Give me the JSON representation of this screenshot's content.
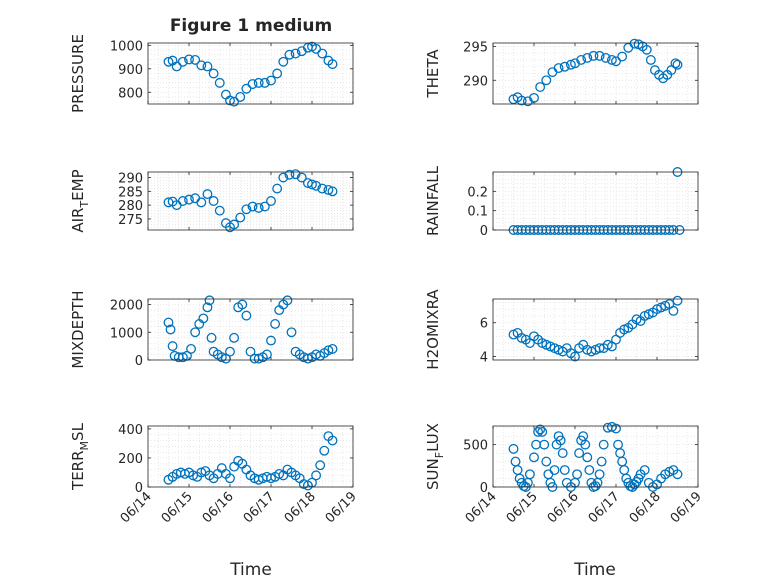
{
  "figure": {
    "title": "Figure 1 medium",
    "xlabel": "Time",
    "marker_color": "#0072BD",
    "x_tick_labels": [
      "06/14",
      "06/15",
      "06/16",
      "06/17",
      "06/18",
      "06/19"
    ]
  },
  "chart_data": [
    {
      "type": "scatter",
      "id": "pressure",
      "ylabel": "PRESSURE",
      "ylabel_sub": "",
      "ylim": [
        750,
        1010
      ],
      "yticks": [
        800,
        900,
        1000
      ],
      "xlim": [
        0,
        5
      ],
      "grid": true,
      "marker": "circle-open",
      "x": [
        0.5,
        0.6,
        0.7,
        0.85,
        1.0,
        1.15,
        1.3,
        1.45,
        1.6,
        1.75,
        1.9,
        2.0,
        2.1,
        2.25,
        2.4,
        2.55,
        2.7,
        2.85,
        3.0,
        3.15,
        3.3,
        3.45,
        3.6,
        3.75,
        3.9,
        4.0,
        4.1,
        4.25,
        4.4,
        4.5
      ],
      "y": [
        930,
        935,
        910,
        930,
        940,
        938,
        915,
        910,
        880,
        840,
        790,
        765,
        760,
        780,
        815,
        835,
        840,
        840,
        850,
        880,
        930,
        960,
        965,
        975,
        990,
        995,
        985,
        965,
        935,
        920
      ]
    },
    {
      "type": "scatter",
      "id": "theta",
      "ylabel": "THETA",
      "ylabel_sub": "",
      "ylim": [
        286.5,
        295.5
      ],
      "yticks": [
        290,
        295
      ],
      "xlim": [
        0,
        5
      ],
      "grid": true,
      "marker": "circle-open",
      "x": [
        0.5,
        0.6,
        0.7,
        0.85,
        1.0,
        1.15,
        1.3,
        1.45,
        1.6,
        1.75,
        1.9,
        2.0,
        2.15,
        2.3,
        2.45,
        2.6,
        2.75,
        2.9,
        3.0,
        3.15,
        3.3,
        3.45,
        3.55,
        3.65,
        3.75,
        3.85,
        3.95,
        4.05,
        4.15,
        4.25,
        4.35,
        4.45,
        4.5
      ],
      "y": [
        287.2,
        287.5,
        287.0,
        286.9,
        287.4,
        289.0,
        290.0,
        291.2,
        291.8,
        292.0,
        292.3,
        292.5,
        293.0,
        293.3,
        293.6,
        293.6,
        293.3,
        293.0,
        292.8,
        293.5,
        294.8,
        295.4,
        295.3,
        295.0,
        294.5,
        293.0,
        291.5,
        290.8,
        290.3,
        290.8,
        291.5,
        292.5,
        292.3
      ]
    },
    {
      "type": "scatter",
      "id": "air_temp",
      "ylabel": "AIR",
      "ylabel_sub": "T",
      "ylabel_tail": "EMP",
      "ylim": [
        271,
        292
      ],
      "yticks": [
        275,
        280,
        285,
        290
      ],
      "xlim": [
        0,
        5
      ],
      "grid": true,
      "marker": "circle-open",
      "x": [
        0.5,
        0.6,
        0.7,
        0.85,
        1.0,
        1.15,
        1.3,
        1.45,
        1.6,
        1.75,
        1.9,
        2.0,
        2.1,
        2.25,
        2.4,
        2.55,
        2.7,
        2.85,
        3.0,
        3.15,
        3.3,
        3.45,
        3.6,
        3.75,
        3.9,
        4.0,
        4.1,
        4.25,
        4.4,
        4.5
      ],
      "y": [
        281.0,
        281.3,
        280.0,
        281.5,
        282.0,
        282.5,
        281.0,
        284.0,
        281.5,
        278.0,
        273.5,
        272.0,
        273.0,
        275.5,
        278.5,
        279.5,
        279.0,
        279.5,
        281.5,
        286.0,
        290.0,
        291.0,
        291.2,
        290.0,
        288.0,
        287.5,
        287.0,
        286.0,
        285.5,
        285.0
      ]
    },
    {
      "type": "scatter",
      "id": "rainfall",
      "ylabel": "RAINFALL",
      "ylabel_sub": "",
      "ylim": [
        0,
        0.3
      ],
      "yticks": [
        0,
        0.1,
        0.2
      ],
      "xlim": [
        0,
        5
      ],
      "grid": true,
      "marker": "circle-open",
      "x": [
        0.5,
        0.6,
        0.7,
        0.8,
        0.9,
        1.0,
        1.1,
        1.2,
        1.3,
        1.4,
        1.5,
        1.6,
        1.7,
        1.8,
        1.9,
        2.0,
        2.1,
        2.2,
        2.3,
        2.4,
        2.5,
        2.6,
        2.7,
        2.8,
        2.9,
        3.0,
        3.1,
        3.2,
        3.3,
        3.4,
        3.5,
        3.6,
        3.7,
        3.8,
        3.9,
        4.0,
        4.1,
        4.2,
        4.3,
        4.4,
        4.5,
        4.55
      ],
      "y": [
        0,
        0,
        0,
        0,
        0,
        0,
        0,
        0,
        0,
        0,
        0,
        0,
        0,
        0,
        0,
        0,
        0,
        0,
        0,
        0,
        0,
        0,
        0,
        0,
        0,
        0,
        0,
        0,
        0,
        0,
        0,
        0,
        0,
        0,
        0,
        0,
        0,
        0,
        0,
        0,
        0.3,
        0
      ]
    },
    {
      "type": "scatter",
      "id": "mixdepth",
      "ylabel": "MIXDEPTH",
      "ylabel_sub": "",
      "ylim": [
        0,
        2200
      ],
      "yticks": [
        0,
        1000,
        2000
      ],
      "xlim": [
        0,
        5
      ],
      "grid": true,
      "marker": "circle-open",
      "x": [
        0.5,
        0.55,
        0.6,
        0.65,
        0.75,
        0.85,
        0.95,
        1.05,
        1.15,
        1.25,
        1.35,
        1.45,
        1.5,
        1.55,
        1.6,
        1.7,
        1.8,
        1.9,
        2.0,
        2.1,
        2.2,
        2.3,
        2.4,
        2.5,
        2.6,
        2.7,
        2.8,
        2.9,
        3.0,
        3.1,
        3.2,
        3.3,
        3.4,
        3.5,
        3.6,
        3.7,
        3.8,
        3.9,
        4.0,
        4.1,
        4.2,
        4.3,
        4.4,
        4.5
      ],
      "y": [
        1350,
        1100,
        500,
        150,
        100,
        100,
        150,
        400,
        1000,
        1300,
        1500,
        1900,
        2150,
        800,
        300,
        200,
        100,
        50,
        300,
        800,
        1900,
        2000,
        1600,
        300,
        50,
        50,
        100,
        200,
        700,
        1300,
        1800,
        2000,
        2150,
        1000,
        300,
        200,
        100,
        50,
        100,
        200,
        150,
        250,
        350,
        400
      ]
    },
    {
      "type": "scatter",
      "id": "h2omixra",
      "ylabel": "H2OMIXRA",
      "ylabel_sub": "",
      "ylim": [
        3.8,
        7.4
      ],
      "yticks": [
        4,
        6
      ],
      "xlim": [
        0,
        5
      ],
      "grid": true,
      "marker": "circle-open",
      "x": [
        0.5,
        0.6,
        0.7,
        0.8,
        0.9,
        1.0,
        1.1,
        1.2,
        1.3,
        1.4,
        1.5,
        1.6,
        1.7,
        1.8,
        1.9,
        2.0,
        2.1,
        2.2,
        2.3,
        2.4,
        2.5,
        2.6,
        2.7,
        2.8,
        2.9,
        3.0,
        3.1,
        3.2,
        3.3,
        3.4,
        3.5,
        3.6,
        3.7,
        3.8,
        3.9,
        4.0,
        4.1,
        4.2,
        4.3,
        4.4,
        4.5
      ],
      "y": [
        5.3,
        5.4,
        5.1,
        5.0,
        4.8,
        5.2,
        5.0,
        4.8,
        4.7,
        4.6,
        4.5,
        4.4,
        4.3,
        4.5,
        4.2,
        4.0,
        4.5,
        4.7,
        4.4,
        4.3,
        4.4,
        4.5,
        4.5,
        4.7,
        4.6,
        5.0,
        5.4,
        5.6,
        5.7,
        5.9,
        6.2,
        6.1,
        6.4,
        6.5,
        6.6,
        6.8,
        6.9,
        7.0,
        7.1,
        6.7,
        7.3
      ]
    },
    {
      "type": "scatter",
      "id": "terr_msl",
      "ylabel": "TERR",
      "ylabel_sub": "M",
      "ylabel_tail": "SL",
      "ylim": [
        0,
        420
      ],
      "yticks": [
        0,
        200,
        400
      ],
      "xlim": [
        0,
        5
      ],
      "grid": true,
      "marker": "circle-open",
      "x": [
        0.5,
        0.6,
        0.7,
        0.8,
        0.9,
        1.0,
        1.1,
        1.2,
        1.3,
        1.4,
        1.5,
        1.6,
        1.7,
        1.8,
        1.9,
        2.0,
        2.1,
        2.2,
        2.3,
        2.4,
        2.5,
        2.6,
        2.7,
        2.8,
        2.9,
        3.0,
        3.1,
        3.2,
        3.3,
        3.4,
        3.5,
        3.6,
        3.7,
        3.8,
        3.9,
        4.0,
        4.1,
        4.2,
        4.3,
        4.4,
        4.5
      ],
      "y": [
        50,
        70,
        90,
        100,
        90,
        100,
        80,
        70,
        100,
        110,
        80,
        60,
        90,
        130,
        90,
        60,
        140,
        180,
        160,
        120,
        80,
        60,
        50,
        60,
        70,
        60,
        70,
        90,
        80,
        120,
        100,
        80,
        60,
        20,
        10,
        30,
        80,
        150,
        250,
        350,
        320
      ]
    },
    {
      "type": "scatter",
      "id": "sun_flux",
      "ylabel": "SUN",
      "ylabel_sub": "F",
      "ylabel_tail": "LUX",
      "ylim": [
        0,
        720
      ],
      "yticks": [
        0,
        500
      ],
      "xlim": [
        0,
        5
      ],
      "grid": true,
      "marker": "circle-open",
      "x": [
        0.5,
        0.55,
        0.6,
        0.65,
        0.7,
        0.75,
        0.8,
        0.85,
        0.9,
        1.0,
        1.05,
        1.1,
        1.15,
        1.2,
        1.25,
        1.3,
        1.35,
        1.4,
        1.45,
        1.5,
        1.55,
        1.6,
        1.65,
        1.7,
        1.75,
        1.8,
        1.9,
        2.0,
        2.05,
        2.1,
        2.15,
        2.2,
        2.25,
        2.3,
        2.35,
        2.4,
        2.45,
        2.5,
        2.55,
        2.6,
        2.65,
        2.7,
        2.8,
        2.9,
        3.0,
        3.05,
        3.1,
        3.15,
        3.2,
        3.25,
        3.3,
        3.35,
        3.4,
        3.45,
        3.5,
        3.55,
        3.6,
        3.7,
        3.8,
        3.9,
        4.0,
        4.1,
        4.2,
        4.3,
        4.4,
        4.5
      ],
      "y": [
        450,
        300,
        200,
        100,
        50,
        10,
        0,
        50,
        150,
        350,
        500,
        650,
        680,
        650,
        500,
        300,
        150,
        50,
        0,
        200,
        500,
        600,
        550,
        400,
        200,
        50,
        0,
        50,
        150,
        400,
        550,
        600,
        500,
        350,
        200,
        50,
        0,
        10,
        50,
        150,
        300,
        500,
        700,
        710,
        690,
        500,
        400,
        300,
        200,
        100,
        50,
        10,
        0,
        30,
        60,
        100,
        150,
        200,
        50,
        0,
        30,
        100,
        150,
        180,
        200,
        150
      ]
    }
  ]
}
